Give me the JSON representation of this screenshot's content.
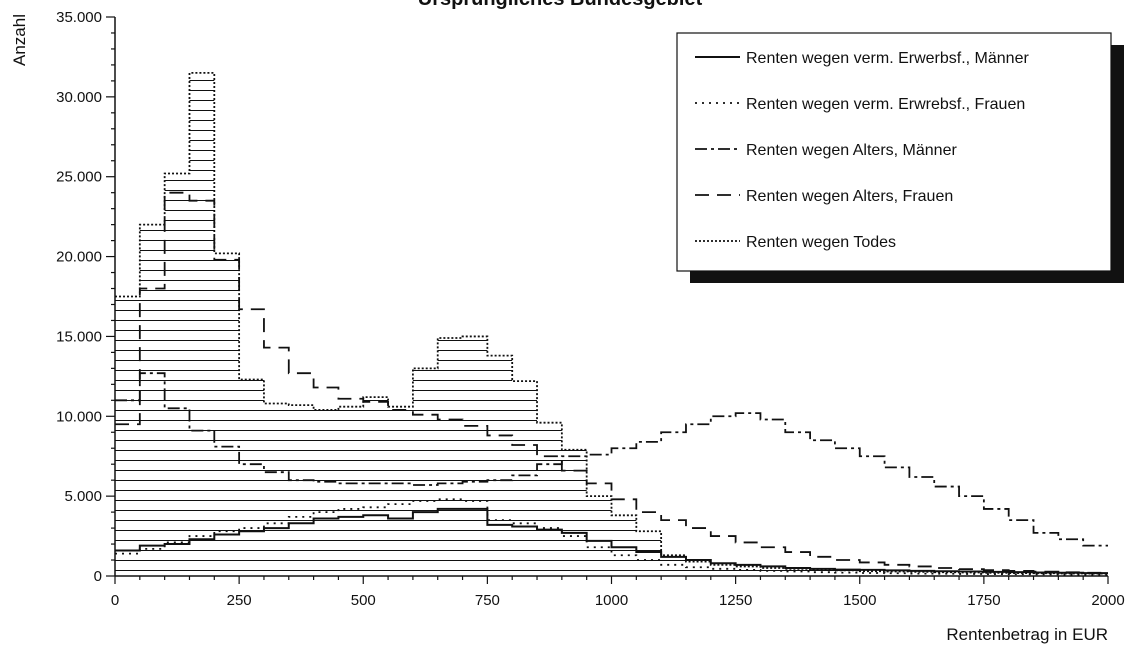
{
  "chart_data": {
    "type": "step",
    "title": "Ursprüngliches Bundesgebiet",
    "xlabel": "Rentenbetrag in EUR",
    "ylabel": "Anzahl",
    "xlim": [
      0,
      2000
    ],
    "ylim": [
      0,
      35000
    ],
    "x_ticks": [
      0,
      250,
      500,
      750,
      1000,
      1250,
      1500,
      1750,
      2000
    ],
    "x_tick_labels": [
      "0",
      "250",
      "500",
      "750",
      "1000",
      "1250",
      "1500",
      "1750",
      "2000"
    ],
    "y_ticks": [
      0,
      5000,
      10000,
      15000,
      20000,
      25000,
      30000,
      35000
    ],
    "y_tick_labels": [
      "0",
      "5.000",
      "10.000",
      "15.000",
      "20.000",
      "25.000",
      "30.000",
      "35.000"
    ],
    "bin_width": 50,
    "x": [
      0,
      50,
      100,
      150,
      200,
      250,
      300,
      350,
      400,
      450,
      500,
      550,
      600,
      650,
      700,
      750,
      800,
      850,
      900,
      950,
      1000,
      1050,
      1100,
      1150,
      1200,
      1250,
      1300,
      1350,
      1400,
      1450,
      1500,
      1550,
      1600,
      1650,
      1700,
      1750,
      1800,
      1850,
      1900,
      1950
    ],
    "legend_position": "top-right",
    "series": [
      {
        "name": "Renten wegen verm. Erwerbsf., Männer",
        "style": "solid",
        "values": [
          1600,
          1900,
          2000,
          2300,
          2600,
          2800,
          3000,
          3300,
          3600,
          3700,
          3800,
          3600,
          4000,
          4200,
          4200,
          3200,
          3100,
          2900,
          2700,
          2200,
          1800,
          1500,
          1200,
          1000,
          800,
          700,
          600,
          500,
          450,
          400,
          380,
          350,
          320,
          300,
          280,
          260,
          240,
          220,
          200,
          180
        ]
      },
      {
        "name": "Renten wegen verm. Erwrebsf., Frauen",
        "style": "dotted",
        "values": [
          1400,
          1700,
          2100,
          2500,
          2800,
          3000,
          3300,
          3700,
          4000,
          4200,
          4300,
          4500,
          4700,
          4800,
          4700,
          3500,
          3300,
          3000,
          2500,
          1800,
          1300,
          1000,
          700,
          550,
          450,
          380,
          320,
          280,
          240,
          210,
          190,
          170,
          150,
          140,
          130,
          120,
          110,
          100,
          90,
          80
        ]
      },
      {
        "name": "Renten wegen Alters, Männer",
        "style": "dash-dot",
        "values": [
          11000,
          12700,
          10500,
          9100,
          8100,
          7000,
          6500,
          6000,
          5900,
          5800,
          5800,
          5800,
          5700,
          5800,
          5900,
          6000,
          6300,
          7000,
          7500,
          7600,
          8000,
          8400,
          9000,
          9500,
          10000,
          10200,
          9800,
          9000,
          8500,
          8000,
          7500,
          6800,
          6200,
          5600,
          5000,
          4200,
          3500,
          2700,
          2300,
          1900
        ]
      },
      {
        "name": "Renten wegen Alters, Frauen",
        "style": "dashed",
        "values": [
          9500,
          18000,
          24000,
          23500,
          19800,
          16700,
          14300,
          12700,
          11800,
          11100,
          10900,
          10400,
          10100,
          9800,
          9400,
          8800,
          8200,
          7500,
          6600,
          5800,
          4800,
          4000,
          3500,
          3000,
          2500,
          2100,
          1800,
          1500,
          1200,
          1000,
          850,
          700,
          600,
          500,
          430,
          370,
          320,
          270,
          230,
          200
        ]
      },
      {
        "name": "Renten wegen Todes",
        "style": "hatched",
        "values": [
          17500,
          22000,
          25200,
          31500,
          20200,
          12300,
          10800,
          10700,
          10400,
          10600,
          11200,
          10600,
          13000,
          14900,
          15000,
          13800,
          12200,
          9600,
          7900,
          5000,
          3800,
          2800,
          1300,
          900,
          700,
          600,
          500,
          450,
          400,
          350,
          300,
          280,
          260,
          240,
          220,
          200,
          180,
          170,
          160,
          150
        ]
      }
    ]
  }
}
